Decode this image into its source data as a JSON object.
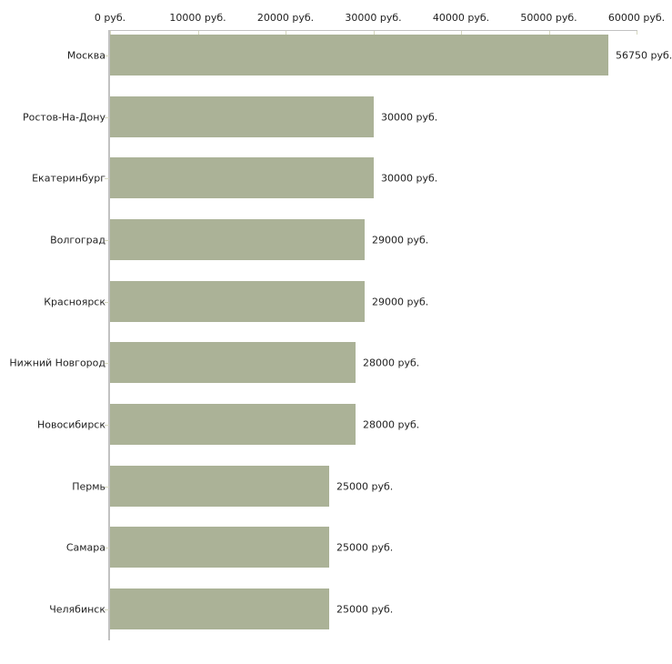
{
  "chart_data": {
    "type": "bar",
    "orientation": "horizontal",
    "title": "",
    "xlabel": "",
    "ylabel": "",
    "grid": false,
    "legend": null,
    "categories": [
      "Москва",
      "Ростов-На-Дону",
      "Екатеринбург",
      "Волгоград",
      "Красноярск",
      "Нижний Новгород",
      "Новосибирск",
      "Пермь",
      "Самара",
      "Челябинск"
    ],
    "values": [
      56750,
      30000,
      30000,
      29000,
      29000,
      28000,
      28000,
      25000,
      25000,
      25000
    ],
    "value_labels": [
      "56750 руб.",
      "30000 руб.",
      "30000 руб.",
      "29000 руб.",
      "29000 руб.",
      "28000 руб.",
      "28000 руб.",
      "25000 руб.",
      "25000 руб.",
      "25000 руб."
    ],
    "x_ticks": [
      0,
      10000,
      20000,
      30000,
      40000,
      50000,
      60000
    ],
    "x_tick_labels": [
      "0 руб.",
      "10000 руб.",
      "20000 руб.",
      "30000 руб.",
      "40000 руб.",
      "50000 руб.",
      "60000 руб."
    ],
    "xlim": [
      0,
      60000
    ],
    "colors": {
      "bar": "#abb297",
      "axis": "#c2c2c2",
      "tick": "#d5d7bf",
      "text": "#222222",
      "background": "#ffffff"
    }
  }
}
